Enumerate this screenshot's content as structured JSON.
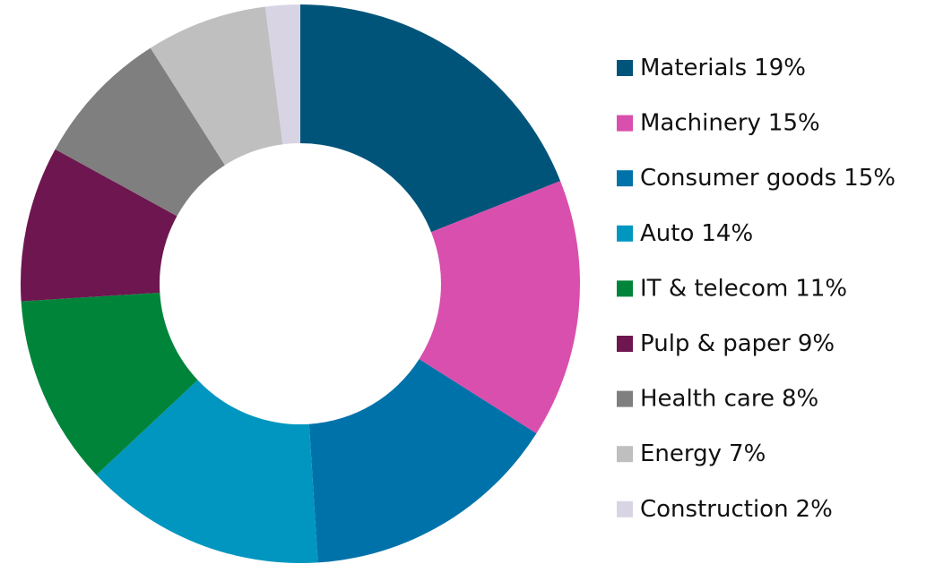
{
  "chart_data": {
    "type": "donut",
    "categories": [
      "Materials",
      "Machinery",
      "Consumer goods",
      "Auto",
      "IT & telecom",
      "Pulp & paper",
      "Health care",
      "Energy",
      "Construction"
    ],
    "values": [
      19,
      15,
      15,
      14,
      11,
      9,
      8,
      7,
      2
    ],
    "value_labels": [
      "19%",
      "15%",
      "15%",
      "14%",
      "11%",
      "9%",
      "8%",
      "7%",
      "2%"
    ],
    "colors": [
      "#00547a",
      "#d94fad",
      "#0072aa",
      "#0096c0",
      "#00843a",
      "#6e1650",
      "#7f7f7f",
      "#bfbfbf",
      "#d9d4e3"
    ],
    "legend": "right"
  }
}
